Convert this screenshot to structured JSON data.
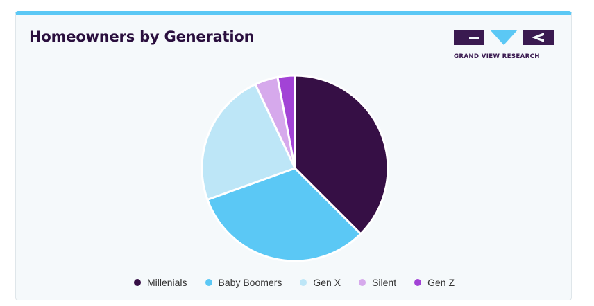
{
  "header": {
    "title": "Homeowners by Generation"
  },
  "logo": {
    "text": "GRAND VIEW RESEARCH",
    "colors": {
      "dark": "#3a1a50",
      "light": "#5bc8f5"
    }
  },
  "chart_data": {
    "type": "pie",
    "title": "Homeowners by Generation",
    "legend_position": "bottom",
    "categories": [
      "Millenials",
      "Baby Boomers",
      "Gen X",
      "Silent",
      "Gen Z"
    ],
    "values": [
      37.5,
      32,
      23.5,
      4,
      3
    ],
    "colors": [
      "#360f45",
      "#5bc8f5",
      "#bde6f7",
      "#d6a9ec",
      "#a243d6"
    ]
  }
}
